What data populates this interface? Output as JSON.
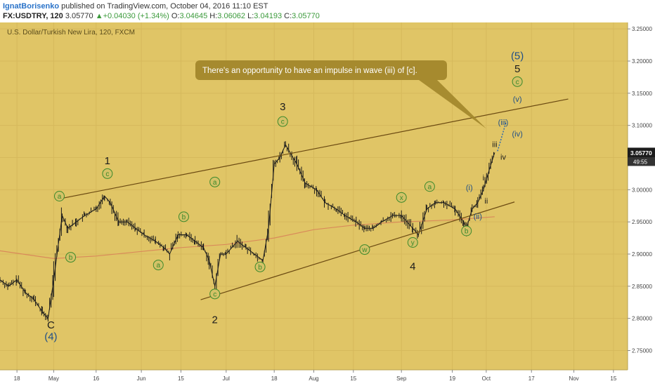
{
  "header": {
    "author": "IgnatBorisenko",
    "published": "published on TradingView.com, October 04, 2016 11:10 EST",
    "symbol": "FX:USDTRY, 120",
    "last": "3.05770",
    "change": "+0.04030 (+1.34%)",
    "o_label": "O:",
    "o": "3.04645",
    "h_label": "H:",
    "h": "3.06062",
    "l_label": "L:",
    "l": "3.04193",
    "c_label": "C:",
    "c": "3.05770"
  },
  "chart_data": {
    "type": "line",
    "title": "U.S. Dollar/Turkish New Lira, 120, FXCM",
    "y_ticks": [
      2.75,
      2.8,
      2.85,
      2.9,
      2.95,
      3.0,
      3.05,
      3.1,
      3.15,
      3.2,
      3.25
    ],
    "y_tick_labels": [
      "2.75000",
      "2.80000",
      "2.85000",
      "2.90000",
      "2.95000",
      "3.00000",
      "3.05000",
      "3.10000",
      "3.15000",
      "3.20000",
      "3.25000"
    ],
    "ylim": [
      2.72,
      3.26
    ],
    "x_range": [
      "2016-04-12",
      "2016-11-20"
    ],
    "x_ticks": [
      {
        "date": "2016-04-18",
        "label": "18"
      },
      {
        "date": "2016-05-01",
        "label": "May"
      },
      {
        "date": "2016-05-16",
        "label": "16"
      },
      {
        "date": "2016-06-01",
        "label": "Jun"
      },
      {
        "date": "2016-06-15",
        "label": "15"
      },
      {
        "date": "2016-07-01",
        "label": "Jul"
      },
      {
        "date": "2016-07-18",
        "label": "18"
      },
      {
        "date": "2016-08-01",
        "label": "Aug"
      },
      {
        "date": "2016-08-15",
        "label": "15"
      },
      {
        "date": "2016-09-01",
        "label": "Sep"
      },
      {
        "date": "2016-09-19",
        "label": "19"
      },
      {
        "date": "2016-10-01",
        "label": "Oct"
      },
      {
        "date": "2016-10-17",
        "label": "17"
      },
      {
        "date": "2016-11-01",
        "label": "Nov"
      },
      {
        "date": "2016-11-15",
        "label": "15"
      }
    ],
    "price_series": [
      [
        "2016-04-12",
        2.86
      ],
      [
        "2016-04-15",
        2.85
      ],
      [
        "2016-04-18",
        2.86
      ],
      [
        "2016-04-21",
        2.84
      ],
      [
        "2016-04-24",
        2.83
      ],
      [
        "2016-04-27",
        2.81
      ],
      [
        "2016-04-29",
        2.8
      ],
      [
        "2016-05-01",
        2.86
      ],
      [
        "2016-05-04",
        2.96
      ],
      [
        "2016-05-06",
        2.94
      ],
      [
        "2016-05-09",
        2.95
      ],
      [
        "2016-05-12",
        2.96
      ],
      [
        "2016-05-16",
        2.97
      ],
      [
        "2016-05-19",
        2.99
      ],
      [
        "2016-05-21",
        2.98
      ],
      [
        "2016-05-24",
        2.95
      ],
      [
        "2016-05-27",
        2.95
      ],
      [
        "2016-05-30",
        2.94
      ],
      [
        "2016-06-02",
        2.93
      ],
      [
        "2016-06-06",
        2.92
      ],
      [
        "2016-06-09",
        2.91
      ],
      [
        "2016-06-11",
        2.9
      ],
      [
        "2016-06-14",
        2.93
      ],
      [
        "2016-06-17",
        2.93
      ],
      [
        "2016-06-20",
        2.92
      ],
      [
        "2016-06-23",
        2.91
      ],
      [
        "2016-06-25",
        2.89
      ],
      [
        "2016-06-27",
        2.85
      ],
      [
        "2016-06-29",
        2.9
      ],
      [
        "2016-07-01",
        2.9
      ],
      [
        "2016-07-05",
        2.92
      ],
      [
        "2016-07-08",
        2.91
      ],
      [
        "2016-07-11",
        2.9
      ],
      [
        "2016-07-14",
        2.89
      ],
      [
        "2016-07-16",
        2.94
      ],
      [
        "2016-07-18",
        3.04
      ],
      [
        "2016-07-20",
        3.05
      ],
      [
        "2016-07-22",
        3.07
      ],
      [
        "2016-07-26",
        3.04
      ],
      [
        "2016-07-29",
        3.01
      ],
      [
        "2016-08-02",
        3.0
      ],
      [
        "2016-08-05",
        2.98
      ],
      [
        "2016-08-09",
        2.97
      ],
      [
        "2016-08-12",
        2.96
      ],
      [
        "2016-08-16",
        2.95
      ],
      [
        "2016-08-19",
        2.94
      ],
      [
        "2016-08-22",
        2.94
      ],
      [
        "2016-08-25",
        2.95
      ],
      [
        "2016-08-29",
        2.96
      ],
      [
        "2016-09-01",
        2.96
      ],
      [
        "2016-09-05",
        2.94
      ],
      [
        "2016-09-07",
        2.93
      ],
      [
        "2016-09-10",
        2.97
      ],
      [
        "2016-09-13",
        2.98
      ],
      [
        "2016-09-16",
        2.98
      ],
      [
        "2016-09-20",
        2.97
      ],
      [
        "2016-09-23",
        2.95
      ],
      [
        "2016-09-24",
        2.94
      ],
      [
        "2016-09-26",
        2.97
      ],
      [
        "2016-09-28",
        2.98
      ],
      [
        "2016-09-30",
        3.0
      ],
      [
        "2016-10-02",
        3.03
      ],
      [
        "2016-10-04",
        3.0577
      ]
    ],
    "moving_average": [
      [
        "2016-04-12",
        2.905
      ],
      [
        "2016-05-01",
        2.893
      ],
      [
        "2016-05-16",
        2.897
      ],
      [
        "2016-06-01",
        2.904
      ],
      [
        "2016-06-15",
        2.91
      ],
      [
        "2016-07-01",
        2.915
      ],
      [
        "2016-07-18",
        2.925
      ],
      [
        "2016-08-01",
        2.938
      ],
      [
        "2016-08-15",
        2.945
      ],
      [
        "2016-09-01",
        2.95
      ],
      [
        "2016-09-19",
        2.953
      ],
      [
        "2016-10-04",
        2.958
      ]
    ],
    "trendlines": [
      {
        "from": [
          "2016-05-02",
          2.985
        ],
        "to": [
          "2016-10-30",
          3.141
        ]
      },
      {
        "from": [
          "2016-06-22",
          2.829
        ],
        "to": [
          "2016-10-11",
          2.981
        ]
      }
    ],
    "projection": {
      "from": [
        "2016-10-05",
        3.06
      ],
      "to": [
        "2016-10-08",
        3.105
      ]
    },
    "callout": {
      "text": "There's an opportunity to have an impulse in wave (iii) of [c].",
      "anchor": [
        "2016-10-01",
        3.095
      ]
    },
    "labels": [
      {
        "text": "a",
        "at": [
          "2016-05-03",
          2.99
        ],
        "circled": true
      },
      {
        "text": "b",
        "at": [
          "2016-05-07",
          2.895
        ],
        "circled": true
      },
      {
        "text": "C",
        "at": [
          "2016-04-30",
          2.79
        ]
      },
      {
        "text": "(4)",
        "at": [
          "2016-04-30",
          2.772
        ]
      },
      {
        "text": "c",
        "at": [
          "2016-05-20",
          3.025
        ],
        "circled": true
      },
      {
        "text": "1",
        "at": [
          "2016-05-20",
          3.045
        ]
      },
      {
        "text": "a",
        "at": [
          "2016-06-07",
          2.883
        ],
        "circled": true
      },
      {
        "text": "b",
        "at": [
          "2016-06-16",
          2.958
        ],
        "circled": true
      },
      {
        "text": "a",
        "at": [
          "2016-06-27",
          3.012
        ],
        "circled": true
      },
      {
        "text": "c",
        "at": [
          "2016-06-27",
          2.838
        ],
        "circled": true
      },
      {
        "text": "2",
        "at": [
          "2016-06-27",
          2.798
        ]
      },
      {
        "text": "b",
        "at": [
          "2016-07-13",
          2.88
        ],
        "circled": true
      },
      {
        "text": "c",
        "at": [
          "2016-07-21",
          3.106
        ],
        "circled": true
      },
      {
        "text": "3",
        "at": [
          "2016-07-21",
          3.129
        ]
      },
      {
        "text": "w",
        "at": [
          "2016-08-19",
          2.907
        ],
        "circled": true
      },
      {
        "text": "x",
        "at": [
          "2016-09-01",
          2.988
        ],
        "circled": true
      },
      {
        "text": "y",
        "at": [
          "2016-09-05",
          2.918
        ],
        "circled": true
      },
      {
        "text": "4",
        "at": [
          "2016-09-05",
          2.881
        ]
      },
      {
        "text": "a",
        "at": [
          "2016-09-11",
          3.005
        ],
        "circled": true
      },
      {
        "text": "b",
        "at": [
          "2016-09-24",
          2.936
        ],
        "circled": true
      },
      {
        "text": "(i)",
        "at": [
          "2016-09-25",
          3.005
        ]
      },
      {
        "text": "(ii)",
        "at": [
          "2016-09-28",
          2.96
        ]
      },
      {
        "text": "i",
        "at": [
          "2016-09-30",
          3.02
        ]
      },
      {
        "text": "ii",
        "at": [
          "2016-10-01",
          2.984
        ]
      },
      {
        "text": "iii",
        "at": [
          "2016-10-04",
          3.072
        ]
      },
      {
        "text": "iv",
        "at": [
          "2016-10-07",
          3.052
        ]
      },
      {
        "text": "(iii)",
        "at": [
          "2016-10-07",
          3.106
        ]
      },
      {
        "text": "(iv)",
        "at": [
          "2016-10-12",
          3.088
        ]
      },
      {
        "text": "(v)",
        "at": [
          "2016-10-12",
          3.142
        ]
      },
      {
        "text": "c",
        "at": [
          "2016-10-12",
          3.168
        ],
        "circled": true
      },
      {
        "text": "5",
        "at": [
          "2016-10-12",
          3.188
        ]
      },
      {
        "text": "(5)",
        "at": [
          "2016-10-12",
          3.208
        ]
      }
    ],
    "price_tag": {
      "value": 3.0577,
      "label": "3.05770",
      "timer": "49:55"
    }
  },
  "colors": {
    "plot_bg": "#e0c566",
    "price": "#1c1c1c",
    "ma": "#d98a5a",
    "trendline": "#6b4a12",
    "callout_bg": "#a2872b",
    "callout_text": "#ffffff",
    "circle_label": "#3d8a2c",
    "circle_fill": "#d4c267",
    "wave_minor": "#1c1c1c",
    "wave_major": "#1f4f87",
    "projection": "#2d6ab0",
    "axis_bg": "#ffffff",
    "price_tag_bg": "#1c1c1c"
  }
}
